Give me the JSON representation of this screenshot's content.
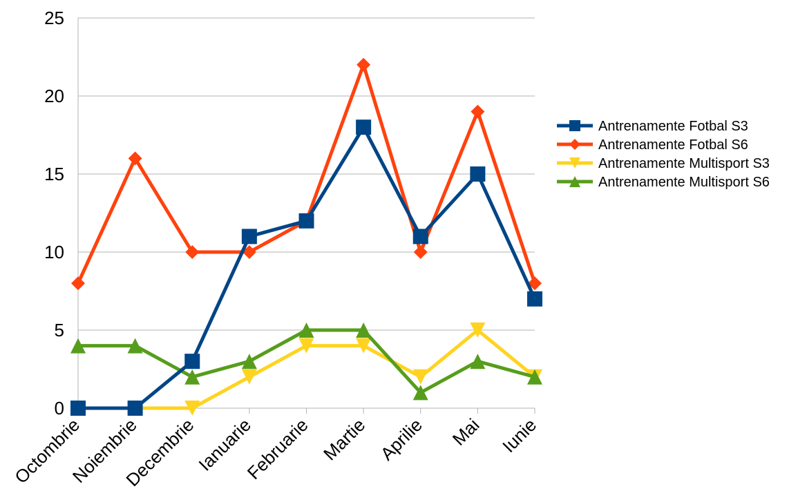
{
  "chart_data": {
    "type": "line",
    "title": "",
    "xlabel": "",
    "ylabel": "",
    "categories": [
      "Octombrie",
      "Noiembrie",
      "Decembrie",
      "Ianuarie",
      "Februarie",
      "Martie",
      "Aprilie",
      "Mai",
      "Iunie"
    ],
    "ylim": [
      0,
      25
    ],
    "yticks": [
      0,
      5,
      10,
      15,
      20,
      25
    ],
    "grid": "horizontal",
    "legend_position": "right",
    "series": [
      {
        "name": "Antrenamente Fotbal S3",
        "color": "#004586",
        "marker": "square",
        "values": [
          0,
          0,
          3,
          11,
          12,
          18,
          11,
          15,
          7
        ]
      },
      {
        "name": "Antrenamente Fotbal S6",
        "color": "#ff420e",
        "marker": "diamond",
        "values": [
          8,
          16,
          10,
          10,
          12,
          22,
          10,
          19,
          8
        ]
      },
      {
        "name": "Antrenamente Multisport S3",
        "color": "#ffd320",
        "marker": "triangle-down",
        "values": [
          0,
          0,
          0,
          2,
          4,
          4,
          2,
          5,
          2
        ]
      },
      {
        "name": "Antrenamente Multisport S6",
        "color": "#579d1c",
        "marker": "triangle-up",
        "values": [
          4,
          4,
          2,
          3,
          5,
          5,
          1,
          3,
          2
        ]
      }
    ]
  }
}
